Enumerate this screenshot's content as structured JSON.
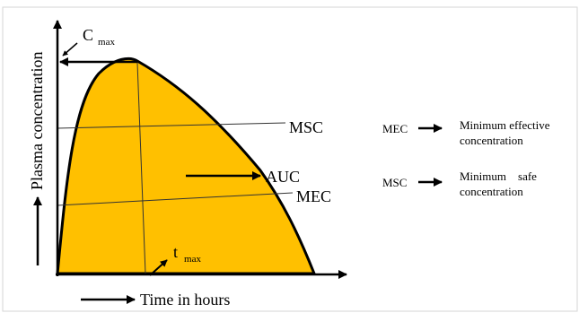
{
  "diagram": {
    "y_axis_label": "Plasma concentration",
    "x_axis_label": "Time in hours",
    "cmax_base": "C",
    "cmax_sub": "max",
    "tmax_base": "t",
    "tmax_sub": "max",
    "msc_label": "MSC",
    "mec_label": "MEC",
    "auc_label": "AUC",
    "fill_color": "#FFC000"
  },
  "legend": {
    "mec": {
      "abbr": "MEC",
      "line1": "Minimum effective",
      "line2": "concentration"
    },
    "msc": {
      "abbr": "MSC",
      "line1": "Minimum    safe",
      "line2": "concentration"
    }
  }
}
